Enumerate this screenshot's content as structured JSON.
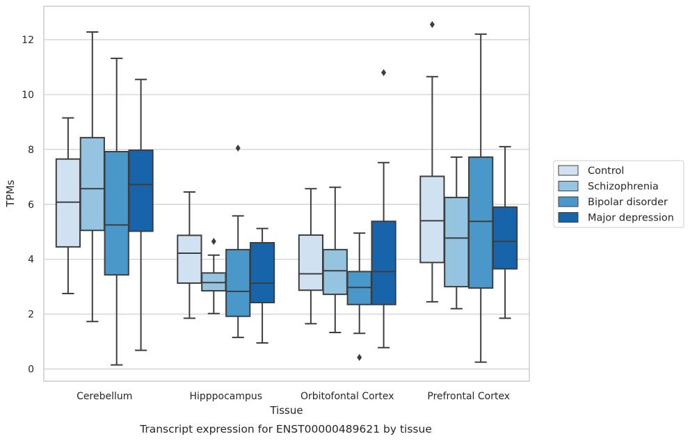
{
  "caption": "Transcript expression for ENST00000489621 by tissue",
  "chart_data": {
    "type": "box",
    "title": "",
    "xlabel": "Tissue",
    "ylabel": "TPMs",
    "ylim": [
      -0.4,
      13.2
    ],
    "yticks": [
      0,
      2,
      4,
      6,
      8,
      10,
      12
    ],
    "grid": "y",
    "legend_position": "right",
    "categories": [
      "Cerebellum",
      "Hipppocampus",
      "Orbitofontal Cortex",
      "Prefrontal Cortex"
    ],
    "series": [
      {
        "name": "Control",
        "color": "#d0e1f2",
        "boxes": [
          {
            "whislo": 2.75,
            "q1": 4.45,
            "med": 6.08,
            "q3": 7.65,
            "whishi": 9.15,
            "fliers": []
          },
          {
            "whislo": 1.85,
            "q1": 3.13,
            "med": 4.22,
            "q3": 4.87,
            "whishi": 6.45,
            "fliers": []
          },
          {
            "whislo": 1.65,
            "q1": 2.87,
            "med": 3.47,
            "q3": 4.88,
            "whishi": 6.57,
            "fliers": []
          },
          {
            "whislo": 2.45,
            "q1": 3.88,
            "med": 5.4,
            "q3": 7.02,
            "whishi": 10.65,
            "fliers": [
              12.55
            ]
          }
        ]
      },
      {
        "name": "Schizophrenia",
        "color": "#94c4df",
        "boxes": [
          {
            "whislo": 1.73,
            "q1": 5.05,
            "med": 6.57,
            "q3": 8.43,
            "whishi": 12.28,
            "fliers": []
          },
          {
            "whislo": 2.02,
            "q1": 2.85,
            "med": 3.15,
            "q3": 3.5,
            "whishi": 4.15,
            "fliers": [
              4.65
            ]
          },
          {
            "whislo": 1.33,
            "q1": 2.72,
            "med": 3.58,
            "q3": 4.35,
            "whishi": 6.62,
            "fliers": []
          },
          {
            "whislo": 2.2,
            "q1": 3.0,
            "med": 4.77,
            "q3": 6.25,
            "whishi": 7.72,
            "fliers": []
          }
        ]
      },
      {
        "name": "Bipolar disorder",
        "color": "#4a98c9",
        "boxes": [
          {
            "whislo": 0.15,
            "q1": 3.43,
            "med": 5.25,
            "q3": 7.92,
            "whishi": 11.32,
            "fliers": []
          },
          {
            "whislo": 1.15,
            "q1": 1.92,
            "med": 2.83,
            "q3": 4.35,
            "whishi": 5.58,
            "fliers": [
              8.05
            ]
          },
          {
            "whislo": 1.3,
            "q1": 2.35,
            "med": 2.97,
            "q3": 3.55,
            "whishi": 4.95,
            "fliers": [
              0.42
            ]
          },
          {
            "whislo": 0.25,
            "q1": 2.95,
            "med": 5.38,
            "q3": 7.72,
            "whishi": 12.2,
            "fliers": []
          }
        ]
      },
      {
        "name": "Major depression",
        "color": "#1764ab",
        "boxes": [
          {
            "whislo": 0.68,
            "q1": 5.02,
            "med": 6.72,
            "q3": 7.97,
            "whishi": 10.55,
            "fliers": []
          },
          {
            "whislo": 0.95,
            "q1": 2.42,
            "med": 3.13,
            "q3": 4.6,
            "whishi": 5.12,
            "fliers": []
          },
          {
            "whislo": 0.78,
            "q1": 2.35,
            "med": 3.55,
            "q3": 5.38,
            "whishi": 7.52,
            "fliers": [
              10.8
            ]
          },
          {
            "whislo": 1.85,
            "q1": 3.65,
            "med": 4.65,
            "q3": 5.9,
            "whishi": 8.1,
            "fliers": []
          }
        ]
      }
    ]
  }
}
